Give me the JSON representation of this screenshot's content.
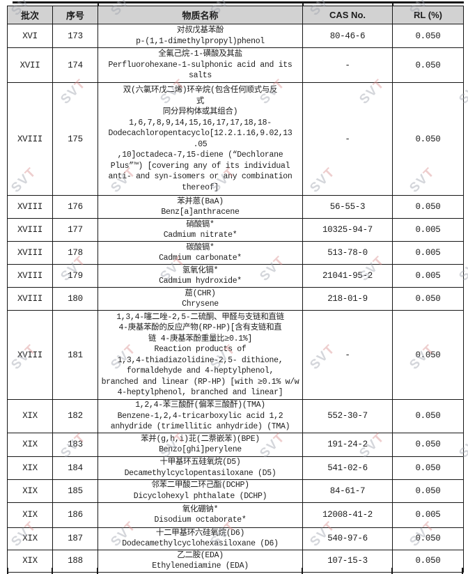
{
  "watermark": {
    "text": "SVT",
    "gray_color": "#9ba0aa",
    "accent_color": "#d98c8c"
  },
  "table": {
    "columns": [
      "批次",
      "序号",
      "物质名称",
      "CAS No.",
      "RL (%)"
    ],
    "rows": [
      {
        "batch": "XVI",
        "no": "173",
        "name": "对叔戊基苯酚\np-(1,1-dimethylpropyl)phenol",
        "cas": "80-46-6",
        "rl": "0.050"
      },
      {
        "batch": "XVII",
        "no": "174",
        "name": "全氟己烷-1-磺酸及其盐\nPerfluorohexane-1-sulphonic acid and its\nsalts",
        "cas": "-",
        "rl": "0.050"
      },
      {
        "batch": "XVIII",
        "no": "175",
        "name": "双(六氯环戊二烯)环辛烷(包含任何顺式与反\n式\n同分异构体或其组合)\n1,6,7,8,9,14,15,16,17,17,18,18-\nDodecachloropentacyclo[12.2.1.16,9.02,13\n.05\n,10]octadeca-7,15-diene (“Dechlorane\nPlus”™) [covering any of its individual\nanti- and syn-isomers or any combination\nthereof]",
        "cas": "-",
        "rl": "0.050"
      },
      {
        "batch": "XVIII",
        "no": "176",
        "name": "苯并蒽(BaA)\nBenz[a]anthracene",
        "cas": "56-55-3",
        "rl": "0.050"
      },
      {
        "batch": "XVIII",
        "no": "177",
        "name": "硝酸镉*\nCadmium nitrate*",
        "cas": "10325-94-7",
        "rl": "0.005"
      },
      {
        "batch": "XVIII",
        "no": "178",
        "name": "碳酸镉*\nCadmium carbonate*",
        "cas": "513-78-0",
        "rl": "0.005"
      },
      {
        "batch": "XVIII",
        "no": "179",
        "name": "氢氧化镉*\nCadmium hydroxide*",
        "cas": "21041-95-2",
        "rl": "0.005"
      },
      {
        "batch": "XVIII",
        "no": "180",
        "name": "䓛(CHR)\nChrysene",
        "cas": "218-01-9",
        "rl": "0.050"
      },
      {
        "batch": "XVIII",
        "no": "181",
        "name": "1,3,4-噻二唑-2,5-二硫酮、甲醛与支链和直链\n4-庚基苯酚的反应产物(RP-HP)[含有支链和直\n链 4-庚基苯酚重量比≥0.1%]\nReaction products of\n1,3,4-thiadiazolidine-2,5- dithione,\nformaldehyde and 4-heptylphenol,\nbranched and linear (RP-HP) [with ≥0.1% w/w\n4-heptylphenol, branched and linear]",
        "cas": "-",
        "rl": "0.050"
      },
      {
        "batch": "XIX",
        "no": "182",
        "name": "1,2,4-苯三酸酐(偏苯三酸酐)(TMA)\nBenzene-1,2,4-tricarboxylic acid 1,2\nanhydride (trimellitic anhydride) (TMA)",
        "cas": "552-30-7",
        "rl": "0.050"
      },
      {
        "batch": "XIX",
        "no": "183",
        "name": "苯并(g,h,i)苝(二萘嵌苯)(BPE)\nBenzo[ghi]perylene",
        "cas": "191-24-2",
        "rl": "0.050"
      },
      {
        "batch": "XIX",
        "no": "184",
        "name": "十甲基环五硅氧烷(D5)\nDecamethylcyclopentasiloxane (D5)",
        "cas": "541-02-6",
        "rl": "0.050"
      },
      {
        "batch": "XIX",
        "no": "185",
        "name": "邻苯二甲酸二环己酯(DCHP)\nDicyclohexyl phthalate (DCHP)",
        "cas": "84-61-7",
        "rl": "0.050"
      },
      {
        "batch": "XIX",
        "no": "186",
        "name": "氧化硼钠*\nDisodium octaborate*",
        "cas": "12008-41-2",
        "rl": "0.005"
      },
      {
        "batch": "XIX",
        "no": "187",
        "name": "十二甲基环六硅氧烷(D6)\nDodecamethylcyclohexasiloxane (D6)",
        "cas": "540-97-6",
        "rl": "0.050"
      },
      {
        "batch": "XIX",
        "no": "188",
        "name": "乙二胺(EDA)\nEthylenediamine (EDA)",
        "cas": "107-15-3",
        "rl": "0.050"
      }
    ]
  }
}
